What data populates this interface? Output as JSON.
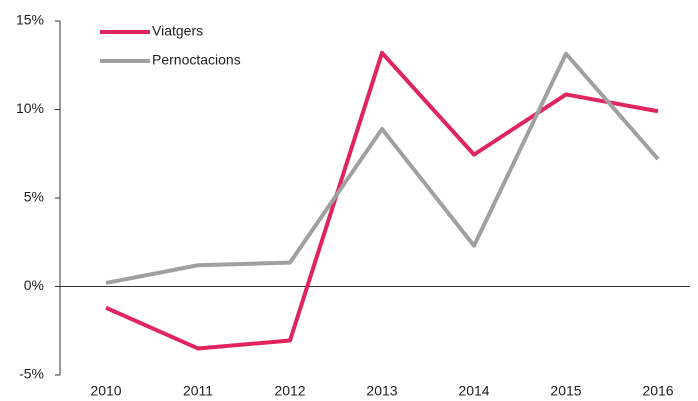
{
  "chart_data": {
    "type": "line",
    "categories": [
      "2010",
      "2011",
      "2012",
      "2013",
      "2014",
      "2015",
      "2016"
    ],
    "series": [
      {
        "name": "Viatgers",
        "color": "#e0245e",
        "values": [
          -1.2,
          -3.5,
          -3.05,
          13.2,
          7.45,
          10.85,
          9.9
        ]
      },
      {
        "name": "Pernoctacions",
        "color": "#a0a0a0",
        "values": [
          0.2,
          1.2,
          1.35,
          8.9,
          2.3,
          13.15,
          7.2
        ]
      }
    ],
    "ylim": [
      -5,
      15
    ],
    "yticks": [
      {
        "value": -5,
        "label": "-5%"
      },
      {
        "value": 0,
        "label": "0%"
      },
      {
        "value": 5,
        "label": "5%"
      },
      {
        "value": 10,
        "label": "10%"
      },
      {
        "value": 15,
        "label": "15%"
      }
    ],
    "legend": "top-left"
  }
}
